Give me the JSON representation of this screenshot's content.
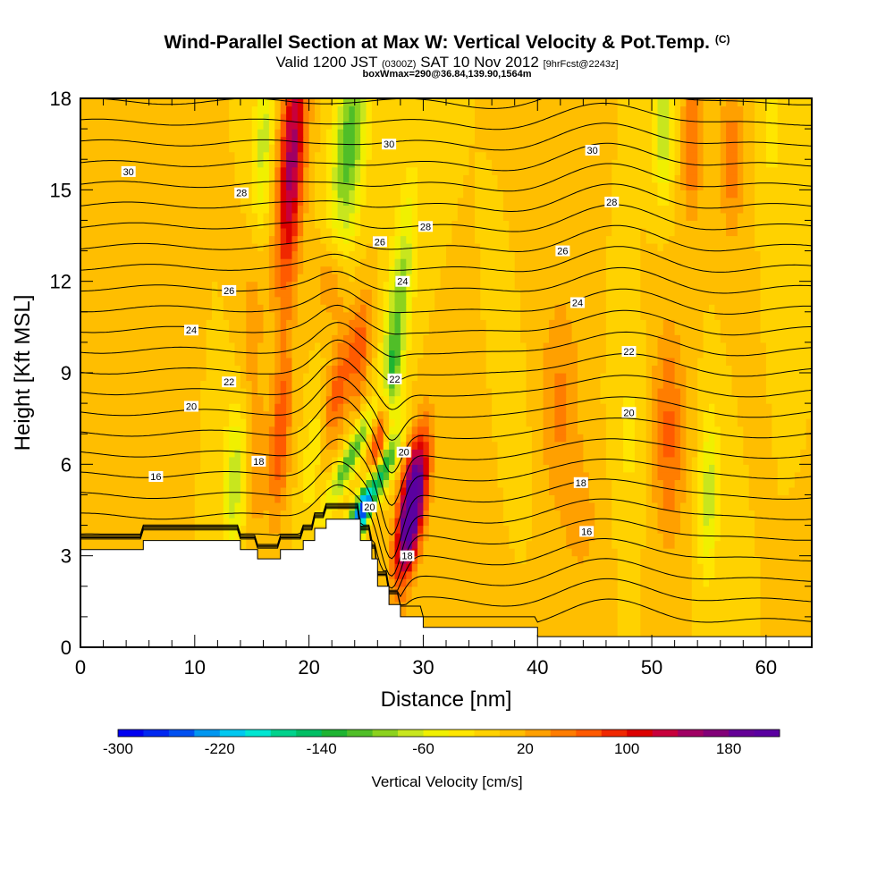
{
  "title": {
    "main": "Wind-Parallel Section at Max W: Vertical Velocity & Pot.Temp.",
    "copyright": "(C)",
    "sub_a": "Valid 1200 JST",
    "sub_b": "(0300Z)",
    "sub_c": "SAT 10 Nov 2012",
    "sub_d": "[9hrFcst@2243z]",
    "sub2": "boxWmax=290@36.84,139.90,1564m"
  },
  "chart_data": {
    "type": "heatmap",
    "xlabel": "Distance [nm]",
    "ylabel": "Height [Kft MSL]",
    "xlim": [
      0,
      64
    ],
    "ylim": [
      0,
      18
    ],
    "xticks": [
      0,
      10,
      20,
      30,
      40,
      50,
      60
    ],
    "yticks": [
      0,
      3,
      6,
      9,
      12,
      15,
      18
    ],
    "colorbar": {
      "label": "Vertical Velocity [cm/s]",
      "tick_labels": [
        "-300",
        "-220",
        "-140",
        "-60",
        "20",
        "100",
        "180"
      ],
      "tick_values": [
        -300,
        -220,
        -140,
        -60,
        20,
        100,
        180
      ],
      "range": [
        -300,
        220
      ],
      "colors": [
        "#0000f0",
        "#0028f0",
        "#0050f0",
        "#0096f0",
        "#00c8f0",
        "#00e6d2",
        "#00d28c",
        "#00be64",
        "#1eb432",
        "#50be28",
        "#8cd21e",
        "#c8e61e",
        "#f0f000",
        "#ffe600",
        "#ffd200",
        "#ffbe00",
        "#ffa000",
        "#ff7d00",
        "#ff5a00",
        "#f02800",
        "#dc0000",
        "#c8003c",
        "#a00064",
        "#820078",
        "#640096",
        "#5a00a0"
      ]
    },
    "terrain": [
      [
        0,
        3.2
      ],
      [
        5.5,
        3.2
      ],
      [
        5.5,
        3.5
      ],
      [
        14,
        3.5
      ],
      [
        14,
        3.2
      ],
      [
        15.5,
        3.2
      ],
      [
        15.5,
        2.9
      ],
      [
        17.5,
        2.9
      ],
      [
        17.5,
        3.2
      ],
      [
        19.5,
        3.2
      ],
      [
        19.5,
        3.5
      ],
      [
        20.5,
        3.5
      ],
      [
        20.5,
        3.9
      ],
      [
        21.5,
        3.9
      ],
      [
        21.5,
        4.2
      ],
      [
        24.5,
        4.2
      ],
      [
        24.5,
        3.5
      ],
      [
        25.5,
        3.5
      ],
      [
        25.5,
        2.9
      ],
      [
        26,
        2.9
      ],
      [
        26,
        2.0
      ],
      [
        27,
        2.0
      ],
      [
        27,
        1.4
      ],
      [
        28,
        1.4
      ],
      [
        28,
        1.0
      ],
      [
        30,
        1.0
      ],
      [
        30,
        0.65
      ],
      [
        40,
        0.65
      ],
      [
        40,
        0.35
      ],
      [
        64,
        0.35
      ]
    ],
    "velocity_features": [
      {
        "x": 29,
        "y": 4.6,
        "sx": 0.75,
        "sy": 1.6,
        "tilt": 0.35,
        "w": 260
      },
      {
        "x": 26,
        "y": 6.2,
        "sx": 0.55,
        "sy": 1.6,
        "tilt": 0.3,
        "w": 120
      },
      {
        "x": 25,
        "y": 4.7,
        "sx": 0.65,
        "sy": 1.2,
        "tilt": 1.15,
        "w": -300
      },
      {
        "x": 23.6,
        "y": 6.2,
        "sx": 0.6,
        "sy": 1.2,
        "tilt": 1.2,
        "w": -120
      },
      {
        "x": 22.5,
        "y": 8.5,
        "sx": 0.8,
        "sy": 1.5,
        "tilt": 0.45,
        "w": 70
      },
      {
        "x": 24.5,
        "y": 9.8,
        "sx": 0.6,
        "sy": 1.3,
        "tilt": 0.2,
        "w": 65
      },
      {
        "x": 27.8,
        "y": 11.0,
        "sx": 0.75,
        "sy": 2.8,
        "tilt": 0.25,
        "w": -95
      },
      {
        "x": 27.2,
        "y": 9.0,
        "sx": 0.5,
        "sy": 1.0,
        "tilt": 0.1,
        "w": -60
      },
      {
        "x": 23.5,
        "y": 16.5,
        "sx": 1.0,
        "sy": 2.5,
        "tilt": 0.2,
        "w": -115
      },
      {
        "x": 18.5,
        "y": 16.0,
        "sx": 0.8,
        "sy": 3.0,
        "tilt": 0.15,
        "w": 150
      },
      {
        "x": 16.0,
        "y": 16.5,
        "sx": 0.6,
        "sy": 2.0,
        "tilt": 0.1,
        "w": -70
      },
      {
        "x": 17.5,
        "y": 7.0,
        "sx": 0.6,
        "sy": 2.0,
        "tilt": 0.15,
        "w": 80
      },
      {
        "x": 13.5,
        "y": 5.5,
        "sx": 0.7,
        "sy": 1.8,
        "tilt": 0.1,
        "w": -75
      },
      {
        "x": 15.5,
        "y": 6.0,
        "sx": 0.6,
        "sy": 1.5,
        "tilt": 0.1,
        "w": 40
      },
      {
        "x": 20.5,
        "y": 6.5,
        "sx": 0.6,
        "sy": 1.5,
        "tilt": 0.3,
        "w": -45
      },
      {
        "x": 22.0,
        "y": 12.0,
        "sx": 0.9,
        "sy": 1.0,
        "tilt": 0.0,
        "w": 50
      },
      {
        "x": 15.0,
        "y": 10.5,
        "sx": 0.7,
        "sy": 2.0,
        "tilt": 0.1,
        "w": 35
      },
      {
        "x": 42,
        "y": 8.0,
        "sx": 1.3,
        "sy": 2.5,
        "tilt": 0.0,
        "w": 45
      },
      {
        "x": 44,
        "y": 4.0,
        "sx": 1.2,
        "sy": 1.5,
        "tilt": 0.0,
        "w": 25
      },
      {
        "x": 38,
        "y": 6.0,
        "sx": 0.9,
        "sy": 2.0,
        "tilt": 0.0,
        "w": -15
      },
      {
        "x": 48,
        "y": 7.0,
        "sx": 0.9,
        "sy": 2.0,
        "tilt": 0.0,
        "w": -25
      },
      {
        "x": 51.5,
        "y": 7.0,
        "sx": 1.0,
        "sy": 2.5,
        "tilt": 0.0,
        "w": 65
      },
      {
        "x": 55.0,
        "y": 5.0,
        "sx": 0.6,
        "sy": 1.8,
        "tilt": 0.05,
        "w": -75
      },
      {
        "x": 53.5,
        "y": 16.5,
        "sx": 0.6,
        "sy": 1.8,
        "tilt": 0.0,
        "w": 60
      },
      {
        "x": 51.0,
        "y": 17.0,
        "sx": 0.6,
        "sy": 1.5,
        "tilt": 0.0,
        "w": -85
      },
      {
        "x": 57.0,
        "y": 16.0,
        "sx": 0.7,
        "sy": 2.0,
        "tilt": 0.0,
        "w": 50
      },
      {
        "x": 60.5,
        "y": 17.0,
        "sx": 0.6,
        "sy": 1.5,
        "tilt": 0.0,
        "w": -30
      },
      {
        "x": 2.0,
        "y": 12.0,
        "sx": 2.0,
        "sy": 4.0,
        "tilt": 0.0,
        "w": 20
      },
      {
        "x": 35.0,
        "y": 3.0,
        "sx": 2.0,
        "sy": 2.0,
        "tilt": 0.0,
        "w": 15
      }
    ],
    "contour_labels": [
      {
        "text": "30",
        "x": 4.2,
        "y": 15.6
      },
      {
        "text": "28",
        "x": 14.1,
        "y": 14.9
      },
      {
        "text": "30",
        "x": 27.0,
        "y": 16.5
      },
      {
        "text": "28",
        "x": 30.2,
        "y": 13.8
      },
      {
        "text": "26",
        "x": 26.2,
        "y": 13.3
      },
      {
        "text": "26",
        "x": 13.0,
        "y": 11.7
      },
      {
        "text": "24",
        "x": 28.2,
        "y": 12.0
      },
      {
        "text": "24",
        "x": 9.7,
        "y": 10.4
      },
      {
        "text": "22",
        "x": 13.0,
        "y": 8.7
      },
      {
        "text": "22",
        "x": 27.5,
        "y": 8.8
      },
      {
        "text": "20",
        "x": 9.7,
        "y": 7.9
      },
      {
        "text": "20",
        "x": 28.3,
        "y": 6.4
      },
      {
        "text": "18",
        "x": 15.6,
        "y": 6.1
      },
      {
        "text": "16",
        "x": 6.6,
        "y": 5.6
      },
      {
        "text": "20",
        "x": 25.3,
        "y": 4.6
      },
      {
        "text": "18",
        "x": 28.6,
        "y": 3.0
      },
      {
        "text": "30",
        "x": 44.8,
        "y": 16.3
      },
      {
        "text": "28",
        "x": 46.5,
        "y": 14.6
      },
      {
        "text": "26",
        "x": 42.2,
        "y": 13.0
      },
      {
        "text": "24",
        "x": 43.5,
        "y": 11.3
      },
      {
        "text": "22",
        "x": 48.0,
        "y": 9.7
      },
      {
        "text": "20",
        "x": 48.0,
        "y": 7.7
      },
      {
        "text": "18",
        "x": 43.8,
        "y": 5.4
      },
      {
        "text": "16",
        "x": 44.3,
        "y": 3.8
      }
    ]
  }
}
